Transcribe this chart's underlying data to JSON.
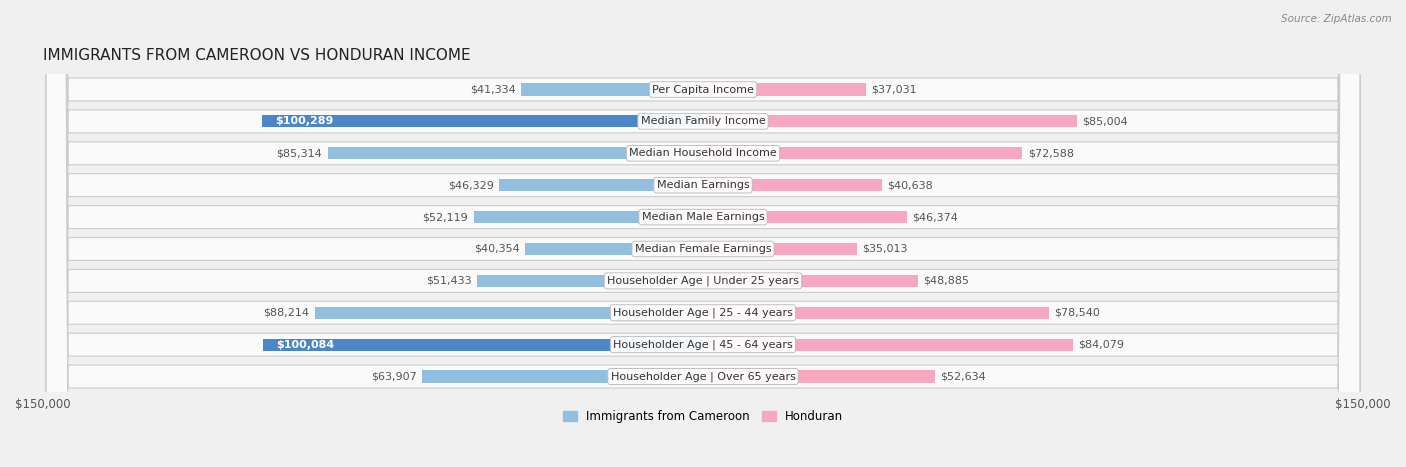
{
  "title": "IMMIGRANTS FROM CAMEROON VS HONDURAN INCOME",
  "source": "Source: ZipAtlas.com",
  "categories": [
    "Per Capita Income",
    "Median Family Income",
    "Median Household Income",
    "Median Earnings",
    "Median Male Earnings",
    "Median Female Earnings",
    "Householder Age | Under 25 years",
    "Householder Age | 25 - 44 years",
    "Householder Age | 45 - 64 years",
    "Householder Age | Over 65 years"
  ],
  "cameroon_values": [
    41334,
    100289,
    85314,
    46329,
    52119,
    40354,
    51433,
    88214,
    100084,
    63907
  ],
  "honduran_values": [
    37031,
    85004,
    72588,
    40638,
    46374,
    35013,
    48885,
    78540,
    84079,
    52634
  ],
  "cameroon_labels": [
    "$41,334",
    "$100,289",
    "$85,314",
    "$46,329",
    "$52,119",
    "$40,354",
    "$51,433",
    "$88,214",
    "$100,084",
    "$63,907"
  ],
  "honduran_labels": [
    "$37,031",
    "$85,004",
    "$72,588",
    "$40,638",
    "$46,374",
    "$35,013",
    "$48,885",
    "$78,540",
    "$84,079",
    "$52,634"
  ],
  "cameroon_color": "#92bfe0",
  "cameroon_highlight_color": "#4a86c8",
  "honduran_color": "#f5a8c0",
  "honduran_highlight_color": "#e8638a",
  "max_value": 150000,
  "bg_color": "#f0f0f0",
  "row_bg_color": "#fafafa",
  "highlight_rows_cam": [
    1,
    8
  ],
  "title_fontsize": 11,
  "label_fontsize": 8,
  "tick_fontsize": 8.5,
  "legend_fontsize": 8.5
}
